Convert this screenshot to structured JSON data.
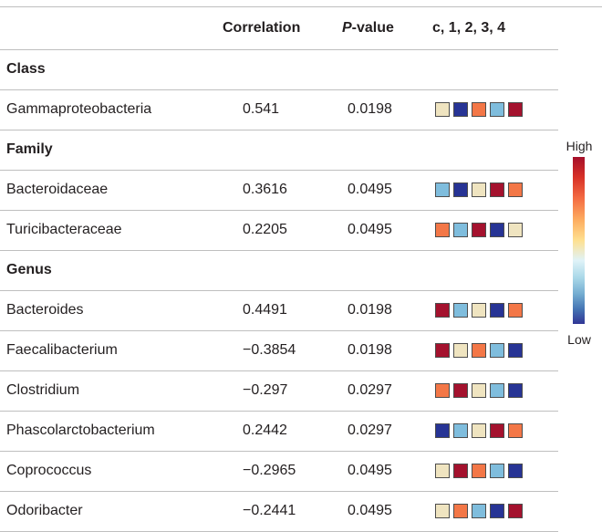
{
  "colors": {
    "cream": "#efe4c0",
    "navy": "#273495",
    "orange": "#f37747",
    "lightblue": "#7fbddd",
    "crimson": "#a4122e"
  },
  "table": {
    "headers": {
      "name": "",
      "correlation": "Correlation",
      "p_italic": "P",
      "p_rest": "-value",
      "squares": "c, 1, 2, 3, 4"
    },
    "sections": [
      {
        "title": "Class",
        "rows": [
          {
            "name": "Gammaproteobacteria",
            "correlation": "0.541",
            "p": "0.0198",
            "squares": [
              "cream",
              "navy",
              "orange",
              "lightblue",
              "crimson"
            ]
          }
        ]
      },
      {
        "title": "Family",
        "rows": [
          {
            "name": "Bacteroidaceae",
            "correlation": "0.3616",
            "p": "0.0495",
            "squares": [
              "lightblue",
              "navy",
              "cream",
              "crimson",
              "orange"
            ]
          },
          {
            "name": "Turicibacteraceae",
            "correlation": "0.2205",
            "p": "0.0495",
            "squares": [
              "orange",
              "lightblue",
              "crimson",
              "navy",
              "cream"
            ]
          }
        ]
      },
      {
        "title": "Genus",
        "rows": [
          {
            "name": "Bacteroides",
            "correlation": "0.4491",
            "p": "0.0198",
            "squares": [
              "crimson",
              "lightblue",
              "cream",
              "navy",
              "orange"
            ]
          },
          {
            "name": "Faecalibacterium",
            "correlation": "−0.3854",
            "p": "0.0198",
            "squares": [
              "crimson",
              "cream",
              "orange",
              "lightblue",
              "navy"
            ]
          },
          {
            "name": "Clostridium",
            "correlation": "−0.297",
            "p": "0.0297",
            "squares": [
              "orange",
              "crimson",
              "cream",
              "lightblue",
              "navy"
            ]
          },
          {
            "name": "Phascolarctobacterium",
            "correlation": "0.2442",
            "p": "0.0297",
            "squares": [
              "navy",
              "lightblue",
              "cream",
              "crimson",
              "orange"
            ]
          },
          {
            "name": "Coprococcus",
            "correlation": "−0.2965",
            "p": "0.0495",
            "squares": [
              "cream",
              "crimson",
              "orange",
              "lightblue",
              "navy"
            ]
          },
          {
            "name": "Odoribacter",
            "correlation": "−0.2441",
            "p": "0.0495",
            "squares": [
              "cream",
              "orange",
              "lightblue",
              "navy",
              "crimson"
            ]
          }
        ]
      }
    ]
  },
  "legend": {
    "high": "High",
    "low": "Low"
  }
}
